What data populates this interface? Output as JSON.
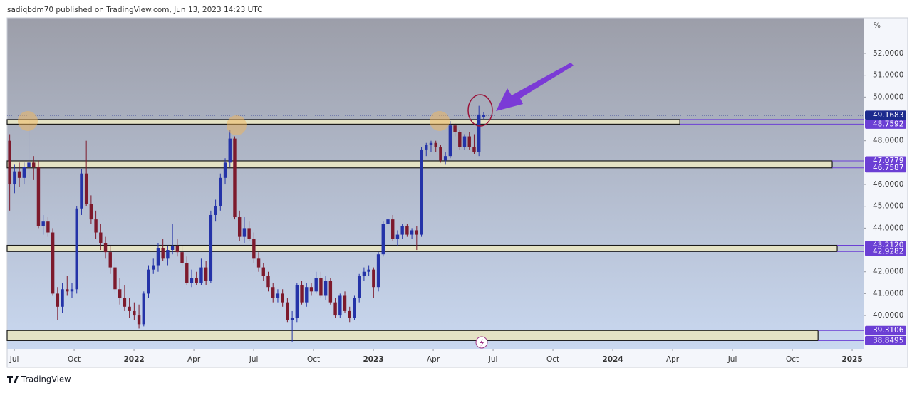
{
  "header": "sadiqbdm70 published on TradingView.com, Jun 13, 2023 14:23 UTC",
  "footer": "TradingView",
  "chart_data": {
    "type": "candlestick",
    "up_color": "#2433a8",
    "down_color": "#7d1a2c",
    "candles": {
      "x": [
        -0.23,
        0.01,
        0.25,
        0.49,
        0.73,
        0.97,
        1.21,
        1.45,
        1.69,
        1.93,
        2.17,
        2.41,
        2.65,
        2.89,
        3.13,
        3.37,
        3.61,
        3.85,
        4.09,
        4.33,
        4.57,
        4.81,
        5.05,
        5.29,
        5.53,
        5.77,
        6.01,
        6.25,
        6.49,
        6.73,
        6.97,
        7.21,
        7.45,
        7.69,
        7.93,
        8.17,
        8.41,
        8.65,
        8.89,
        9.13,
        9.37,
        9.61,
        9.85,
        10.09,
        10.33,
        10.57,
        10.81,
        11.05,
        11.29,
        11.53,
        11.77,
        12.01,
        12.25,
        12.49,
        12.73,
        12.97,
        13.21,
        13.45,
        13.69,
        13.93,
        14.17,
        14.41,
        14.65,
        14.89,
        15.13,
        15.37,
        15.61,
        15.85,
        16.09,
        16.33,
        16.57,
        16.81,
        17.05,
        17.29,
        17.53,
        17.77,
        18.01,
        18.25,
        18.49,
        18.73,
        18.97,
        19.21,
        19.45,
        19.69,
        19.93,
        20.17,
        20.41,
        20.65,
        20.89,
        21.13,
        21.37,
        21.61,
        21.85,
        22.09,
        22.33,
        22.57,
        22.81,
        23.05,
        23.29,
        23.53
      ],
      "open": [
        48.0,
        46.0,
        46.6,
        46.3,
        46.8,
        47.0,
        46.8,
        44.1,
        44.3,
        43.8,
        41.0,
        40.4,
        41.2,
        41.1,
        41.2,
        44.9,
        46.5,
        45.1,
        44.4,
        43.8,
        43.3,
        42.9,
        42.2,
        41.2,
        40.8,
        40.4,
        40.2,
        40.0,
        39.6,
        41.0,
        42.1,
        42.3,
        43.1,
        42.6,
        43.0,
        43.2,
        42.9,
        42.4,
        41.5,
        41.7,
        41.5,
        42.2,
        41.6,
        44.6,
        45.0,
        46.3,
        47.0,
        48.1,
        44.5,
        43.6,
        44.0,
        43.5,
        42.6,
        42.2,
        41.8,
        41.3,
        40.8,
        41.0,
        40.6,
        39.8,
        39.9,
        41.4,
        40.6,
        41.3,
        41.1,
        41.7,
        40.9,
        41.6,
        40.6,
        40.0,
        40.9,
        40.2,
        39.9,
        40.8,
        41.8,
        42.0,
        42.1,
        41.3,
        42.8,
        44.2,
        44.4,
        43.5,
        43.7,
        44.1,
        43.7,
        43.9,
        43.7,
        47.6,
        47.8,
        47.9,
        47.7,
        47.1,
        47.3,
        48.7,
        48.4,
        47.7,
        48.2,
        47.7,
        47.5,
        49.1
      ],
      "high": [
        48.3,
        46.9,
        47.0,
        47.0,
        49.0,
        47.3,
        47.1,
        44.6,
        44.5,
        44.0,
        41.3,
        41.5,
        41.8,
        41.5,
        45.0,
        46.7,
        48.0,
        45.5,
        44.8,
        44.2,
        43.6,
        43.2,
        42.6,
        41.7,
        41.4,
        40.8,
        40.6,
        40.5,
        41.1,
        42.3,
        42.6,
        43.3,
        43.5,
        43.2,
        44.2,
        43.5,
        43.2,
        42.7,
        42.1,
        42.0,
        42.6,
        42.5,
        44.8,
        45.3,
        46.5,
        47.2,
        48.5,
        48.2,
        44.8,
        44.5,
        44.3,
        43.8,
        42.9,
        42.4,
        42.0,
        41.5,
        41.2,
        41.2,
        40.8,
        40.2,
        41.5,
        41.6,
        41.5,
        41.5,
        42.0,
        42.0,
        41.8,
        41.7,
        40.8,
        41.0,
        41.1,
        40.4,
        40.9,
        41.9,
        42.2,
        42.3,
        42.2,
        42.9,
        44.3,
        45.0,
        44.6,
        43.9,
        44.2,
        44.2,
        44.0,
        44.1,
        47.7,
        47.9,
        48.0,
        48.0,
        47.8,
        47.5,
        48.9,
        48.8,
        48.5,
        48.3,
        48.4,
        48.3,
        49.6,
        49.3
      ],
      "low": [
        44.8,
        45.6,
        45.9,
        46.0,
        46.3,
        46.2,
        44.0,
        43.7,
        43.6,
        40.9,
        39.8,
        40.1,
        40.9,
        40.8,
        41.0,
        44.6,
        45.0,
        44.2,
        43.5,
        43.0,
        42.6,
        41.9,
        41.0,
        40.5,
        40.2,
        39.9,
        39.8,
        39.4,
        39.5,
        40.8,
        41.9,
        42.0,
        42.5,
        42.3,
        42.8,
        42.7,
        42.3,
        41.4,
        41.3,
        41.4,
        41.4,
        41.4,
        41.5,
        44.3,
        44.8,
        46.0,
        46.8,
        44.4,
        43.4,
        43.3,
        43.4,
        42.4,
        42.0,
        41.6,
        41.1,
        40.6,
        40.6,
        40.4,
        39.7,
        38.8,
        39.7,
        40.5,
        40.4,
        40.9,
        41.0,
        40.8,
        40.7,
        40.5,
        39.9,
        39.9,
        40.1,
        39.7,
        39.8,
        40.6,
        41.6,
        41.8,
        40.8,
        41.1,
        42.7,
        44.0,
        43.4,
        43.2,
        43.5,
        43.6,
        43.5,
        43.0,
        43.6,
        47.3,
        47.5,
        47.5,
        47.0,
        46.9,
        47.2,
        48.2,
        47.6,
        47.6,
        47.6,
        47.4,
        47.3,
        49.0
      ],
      "close": [
        46.0,
        46.6,
        46.3,
        46.8,
        47.0,
        46.8,
        44.1,
        44.3,
        43.8,
        41.0,
        40.4,
        41.2,
        41.1,
        41.2,
        44.9,
        46.5,
        45.1,
        44.4,
        43.8,
        43.3,
        42.9,
        42.2,
        41.2,
        40.8,
        40.4,
        40.2,
        40.0,
        39.6,
        41.0,
        42.1,
        42.3,
        43.1,
        42.6,
        43.0,
        43.2,
        42.9,
        42.4,
        41.5,
        41.7,
        41.5,
        42.2,
        41.6,
        44.6,
        45.0,
        46.3,
        47.0,
        48.1,
        44.5,
        43.6,
        44.0,
        43.5,
        42.6,
        42.2,
        41.8,
        41.3,
        40.8,
        41.0,
        40.6,
        39.8,
        39.9,
        41.4,
        40.6,
        41.3,
        41.1,
        41.7,
        40.9,
        41.6,
        40.6,
        40.0,
        40.9,
        40.2,
        39.9,
        40.8,
        41.8,
        42.0,
        42.1,
        41.3,
        42.8,
        44.2,
        44.4,
        43.5,
        43.7,
        44.1,
        43.7,
        43.9,
        43.7,
        47.6,
        47.8,
        47.9,
        47.7,
        47.1,
        47.3,
        48.7,
        48.4,
        47.7,
        48.2,
        47.7,
        47.5,
        49.2,
        49.1683
      ]
    },
    "xlim": [
      -0.36,
      42.57
    ],
    "xticks": [
      {
        "value": 0,
        "label": "Jul"
      },
      {
        "value": 3,
        "label": "Oct"
      },
      {
        "value": 6,
        "label": "2022"
      },
      {
        "value": 9,
        "label": "Apr"
      },
      {
        "value": 12,
        "label": "Jul"
      },
      {
        "value": 15,
        "label": "Oct"
      },
      {
        "value": 18,
        "label": "2023"
      },
      {
        "value": 21,
        "label": "Apr"
      },
      {
        "value": 24,
        "label": "Jul"
      },
      {
        "value": 27,
        "label": "Oct"
      },
      {
        "value": 30,
        "label": "2024"
      },
      {
        "value": 33,
        "label": "Apr"
      },
      {
        "value": 36,
        "label": "Jul"
      },
      {
        "value": 39,
        "label": "Oct"
      },
      {
        "value": 42,
        "label": "2025"
      }
    ],
    "ylim": [
      38.47,
      53.63
    ],
    "yticks": [
      {
        "value": 52,
        "label": "52.0000"
      },
      {
        "value": 51,
        "label": "51.0000"
      },
      {
        "value": 50,
        "label": "50.0000"
      },
      {
        "value": 48,
        "label": "48.0000"
      },
      {
        "value": 46,
        "label": "46.0000"
      },
      {
        "value": 45,
        "label": "45.0000"
      },
      {
        "value": 44,
        "label": "44.0000"
      },
      {
        "value": 42,
        "label": "42.0000"
      },
      {
        "value": 41,
        "label": "41.0000"
      },
      {
        "value": 40,
        "label": "40.0000"
      }
    ],
    "y_axis_unit": "%",
    "zone_color": "#e4e2c4",
    "zones": [
      {
        "high": 48.97,
        "low": 48.7592,
        "end": 33.36
      },
      {
        "high": 47.0779,
        "low": 46.7587,
        "end": 41.0
      },
      {
        "high": 43.212,
        "low": 42.9282,
        "end": 41.25
      },
      {
        "high": 39.3106,
        "low": 38.8495,
        "end": 40.29
      }
    ],
    "last_price": 49.1683,
    "last_price_color": "#1c2a8e",
    "zone_label_color": "#6b3fd4",
    "zone_price_labels": [
      48.7592,
      47.0779,
      46.7587,
      {
        "value": 43.212,
        "label": "43.2120"
      },
      42.9282,
      39.3106,
      38.8495
    ]
  }
}
